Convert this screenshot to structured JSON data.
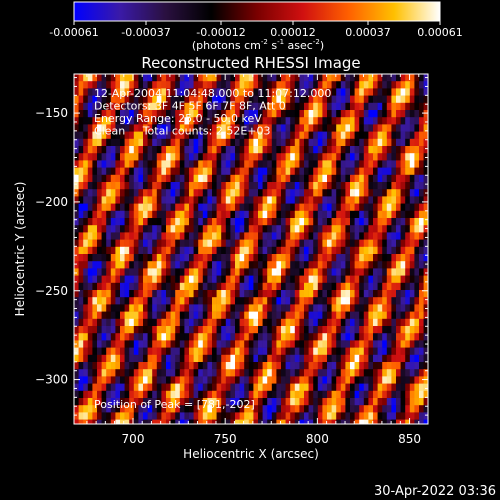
{
  "colorbar": {
    "tick_labels": [
      "-0.00061",
      "-0.00037",
      "-0.00012",
      "0.00012",
      "0.00037",
      "0.00061"
    ],
    "tick_values": [
      -0.00061,
      -0.00037,
      -0.00012,
      0.00012,
      0.00037,
      0.00061
    ],
    "range": [
      -0.00061,
      0.00061
    ],
    "colormap_stops": [
      "#0000ff",
      "#3a1aa8",
      "#2a1040",
      "#000000",
      "#7a0000",
      "#d01010",
      "#ff6000",
      "#ffc000",
      "#ffffff"
    ]
  },
  "units_label": {
    "pre": "(photons cm",
    "exp1": "-2",
    "mid": " s",
    "exp2": "-1",
    "mid2": " asec",
    "exp3": "-2",
    "post": ")"
  },
  "chart_data": {
    "type": "heatmap",
    "title": "Reconstructed RHESSI Image",
    "xlabel": "Heliocentric X (arcsec)",
    "ylabel": "Heliocentric Y (arcsec)",
    "xlim": [
      668,
      860
    ],
    "ylim": [
      -325,
      -128
    ],
    "x_ticks": [
      700,
      750,
      800,
      850
    ],
    "y_ticks": [
      -150,
      -200,
      -250,
      -300
    ],
    "x_tick_labels": [
      "700",
      "750",
      "800",
      "850"
    ],
    "y_tick_labels": [
      "−150",
      "−200",
      "−250",
      "−300"
    ],
    "annotations": [
      "12-Apr-2004 11:04:48.000 to 11:07:12.000",
      "Detectors: 3F 4F 5F 6F 7F 8F, Att 0",
      "Energy Range: 25.0 - 50.0 keV",
      "Clean     Total counts: 2.52E+03"
    ],
    "peak_text": "Position of Peak = [781,-202]",
    "peak_position": [
      781,
      -202
    ]
  },
  "timestamp": "30-Apr-2022 03:36"
}
